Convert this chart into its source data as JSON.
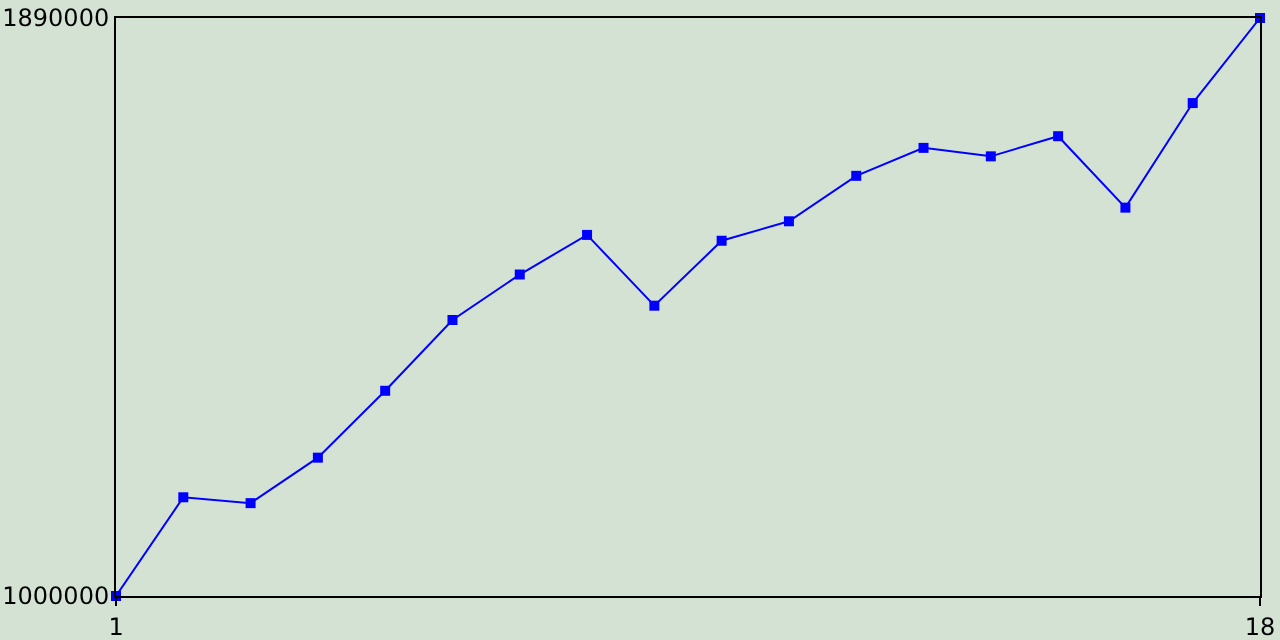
{
  "chart_data": {
    "type": "line",
    "x": [
      1,
      2,
      3,
      4,
      5,
      6,
      7,
      8,
      9,
      10,
      11,
      12,
      13,
      14,
      15,
      16,
      17,
      18
    ],
    "series": [
      {
        "color": "#0000ff",
        "values": [
          1000000,
          1152000,
          1143000,
          1213000,
          1316000,
          1425000,
          1495000,
          1556000,
          1447000,
          1547000,
          1577000,
          1647000,
          1690000,
          1677000,
          1708000,
          1598000,
          1759000,
          1890000
        ]
      }
    ],
    "xlim": [
      1,
      18
    ],
    "xticks": [
      1,
      18
    ],
    "ylim": [
      1000000,
      1890000
    ],
    "yticks": [
      1000000,
      1890000
    ],
    "marker": "square",
    "line_style": "solid"
  }
}
